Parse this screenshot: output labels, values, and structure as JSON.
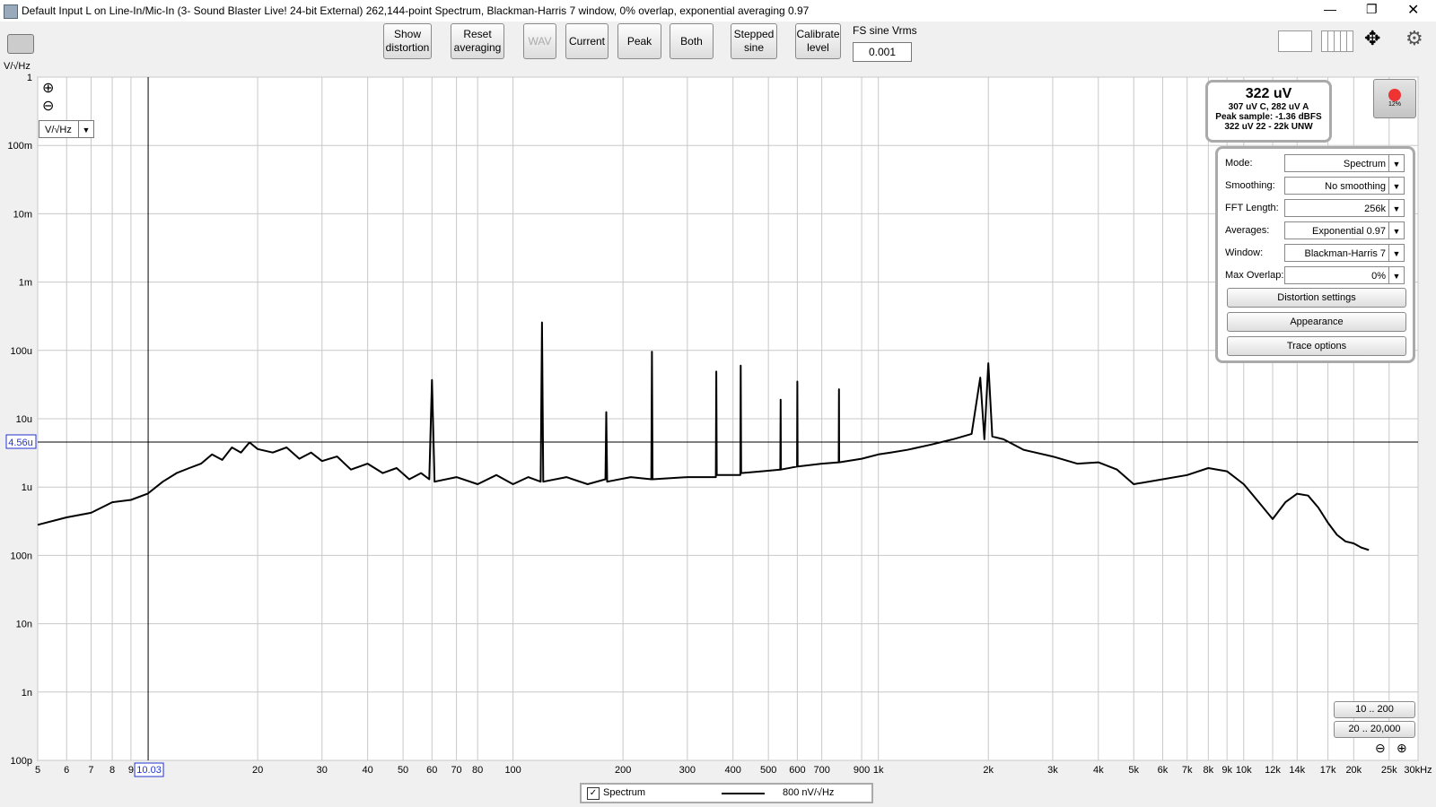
{
  "window": {
    "title": "Default Input L on Line-In/Mic-In (3- Sound Blaster Live! 24-bit External) 262,144-point Spectrum, Blackman-Harris 7 window, 0% overlap, exponential averaging 0.97"
  },
  "toolbar": {
    "buttons": [
      [
        "Show",
        "distortion"
      ],
      [
        "Reset",
        "averaging"
      ],
      [
        "WAV"
      ],
      [
        "Current"
      ],
      [
        "Peak"
      ],
      [
        "Both"
      ],
      [
        "Stepped",
        "sine"
      ],
      [
        "Calibrate",
        "level"
      ]
    ],
    "fs_label": "FS sine Vrms",
    "fs_value": "0.001"
  },
  "unit_label": "V/√Hz",
  "unit_select": "V/√Hz",
  "level": {
    "main": "322 uV",
    "weighted": "307 uV C, 282 uV A",
    "peak": "Peak sample: -1.36 dBFS",
    "band": "322 uV 22 - 22k UNW",
    "cpu": "12%"
  },
  "panel": {
    "rows": [
      [
        "Mode:",
        "Spectrum"
      ],
      [
        "Smoothing:",
        "No  smoothing"
      ],
      [
        "FFT Length:",
        "256k"
      ],
      [
        "Averages:",
        "Exponential 0.97"
      ],
      [
        "Window:",
        "Blackman-Harris 7"
      ],
      [
        "Max Overlap:",
        "0%"
      ]
    ],
    "buttons": [
      "Distortion settings",
      "Appearance",
      "Trace options"
    ]
  },
  "zoom": [
    "10 .. 200",
    "20 .. 20,000"
  ],
  "legend": {
    "reading": "800 nV/√Hz"
  },
  "chart_data": {
    "type": "line",
    "xscale": "log",
    "yscale": "log",
    "grid": true,
    "xlim": [
      5,
      30000
    ],
    "ylim": [
      1e-10,
      1
    ],
    "xticks": [
      5,
      6,
      7,
      8,
      9,
      20,
      30,
      40,
      50,
      60,
      70,
      80,
      100,
      200,
      300,
      400,
      500,
      600,
      700,
      900,
      {
        "value": 1000,
        "label": "1k"
      },
      {
        "value": 2000,
        "label": "2k"
      },
      {
        "value": 3000,
        "label": "3k"
      },
      {
        "value": 4000,
        "label": "4k"
      },
      {
        "value": 5000,
        "label": "5k"
      },
      {
        "value": 6000,
        "label": "6k"
      },
      {
        "value": 7000,
        "label": "7k"
      },
      {
        "value": 8000,
        "label": "8k"
      },
      {
        "value": 9000,
        "label": "9k"
      },
      {
        "value": 10000,
        "label": "10k"
      },
      {
        "value": 12000,
        "label": "12k"
      },
      {
        "value": 14000,
        "label": "14k"
      },
      {
        "value": 17000,
        "label": "17k"
      },
      {
        "value": 20000,
        "label": "20k"
      },
      {
        "value": 25000,
        "label": "25k"
      },
      {
        "value": 30000,
        "label": "30kHz"
      }
    ],
    "yticks": [
      1,
      {
        "value": 0.1,
        "label": "100m"
      },
      {
        "value": 0.01,
        "label": "10m"
      },
      {
        "value": 0.001,
        "label": "1m"
      },
      {
        "value": 0.0001,
        "label": "100u"
      },
      {
        "value": 1e-05,
        "label": "10u"
      },
      {
        "value": 1e-06,
        "label": "1u"
      },
      {
        "value": 1e-07,
        "label": "100n"
      },
      {
        "value": 1e-08,
        "label": "10n"
      },
      {
        "value": 1e-09,
        "label": "1n"
      },
      {
        "value": 1e-10,
        "label": "100p"
      }
    ],
    "cursor": {
      "x": 10.03,
      "y": {
        "value": 4.56e-06,
        "label": "4.56u"
      }
    },
    "x": [
      5,
      6,
      7,
      8,
      9,
      10,
      11,
      12,
      13,
      14,
      15,
      16,
      17,
      18,
      19,
      20,
      22,
      24,
      26,
      28,
      30,
      33,
      36,
      40,
      44,
      48,
      52,
      56,
      59,
      60,
      61,
      70,
      80,
      90,
      100,
      110,
      119,
      120,
      121,
      140,
      160,
      179,
      180,
      181,
      210,
      239,
      240,
      241,
      300,
      359,
      360,
      361,
      419,
      420,
      421,
      480,
      539,
      540,
      541,
      599,
      600,
      601,
      700,
      779,
      780,
      781,
      900,
      1000,
      1080,
      1200,
      1400,
      1600,
      1800,
      1900,
      1950,
      2000,
      2050,
      2200,
      2500,
      3000,
      3500,
      4000,
      4500,
      5000,
      6000,
      7000,
      8000,
      9000,
      10000,
      11000,
      12000,
      13000,
      14000,
      15000,
      16000,
      17000,
      18000,
      19000,
      20000,
      21000,
      22000
    ],
    "series": [
      {
        "name": "Spectrum",
        "color": "#000000",
        "values": [
          2.8e-07,
          3.6e-07,
          4.2e-07,
          6e-07,
          6.5e-07,
          8e-07,
          1.2e-06,
          1.6e-06,
          1.9e-06,
          2.2e-06,
          3e-06,
          2.5e-06,
          3.8e-06,
          3.2e-06,
          4.5e-06,
          3.6e-06,
          3.2e-06,
          3.8e-06,
          2.6e-06,
          3.2e-06,
          2.4e-06,
          2.8e-06,
          1.8e-06,
          2.2e-06,
          1.6e-06,
          1.9e-06,
          1.3e-06,
          1.6e-06,
          1.3e-06,
          3.7e-05,
          1.2e-06,
          1.4e-06,
          1.1e-06,
          1.5e-06,
          1.1e-06,
          1.4e-06,
          1.2e-06,
          0.000257,
          1.2e-06,
          1.4e-06,
          1.1e-06,
          1.3e-06,
          1.25e-05,
          1.2e-06,
          1.4e-06,
          1.3e-06,
          9.6e-05,
          1.3e-06,
          1.4e-06,
          1.4e-06,
          4.9e-05,
          1.5e-06,
          1.5e-06,
          6e-05,
          1.6e-06,
          1.7e-06,
          1.8e-06,
          1.9e-05,
          1.8e-06,
          2e-06,
          3.5e-05,
          2e-06,
          2.2e-06,
          2.3e-06,
          2.7e-05,
          2.3e-06,
          2.6e-06,
          3e-06,
          3.2e-06,
          3.5e-06,
          4.2e-06,
          5e-06,
          6e-06,
          4e-05,
          5e-06,
          6.5e-05,
          5.5e-06,
          5e-06,
          3.5e-06,
          2.8e-06,
          2.2e-06,
          2.3e-06,
          1.8e-06,
          1.1e-06,
          1.3e-06,
          1.5e-06,
          1.9e-06,
          1.7e-06,
          1.1e-06,
          6e-07,
          3.4e-07,
          6e-07,
          8e-07,
          7.5e-07,
          5e-07,
          3e-07,
          2e-07,
          1.6e-07,
          1.5e-07,
          1.3e-07,
          1.2e-07
        ]
      }
    ]
  }
}
